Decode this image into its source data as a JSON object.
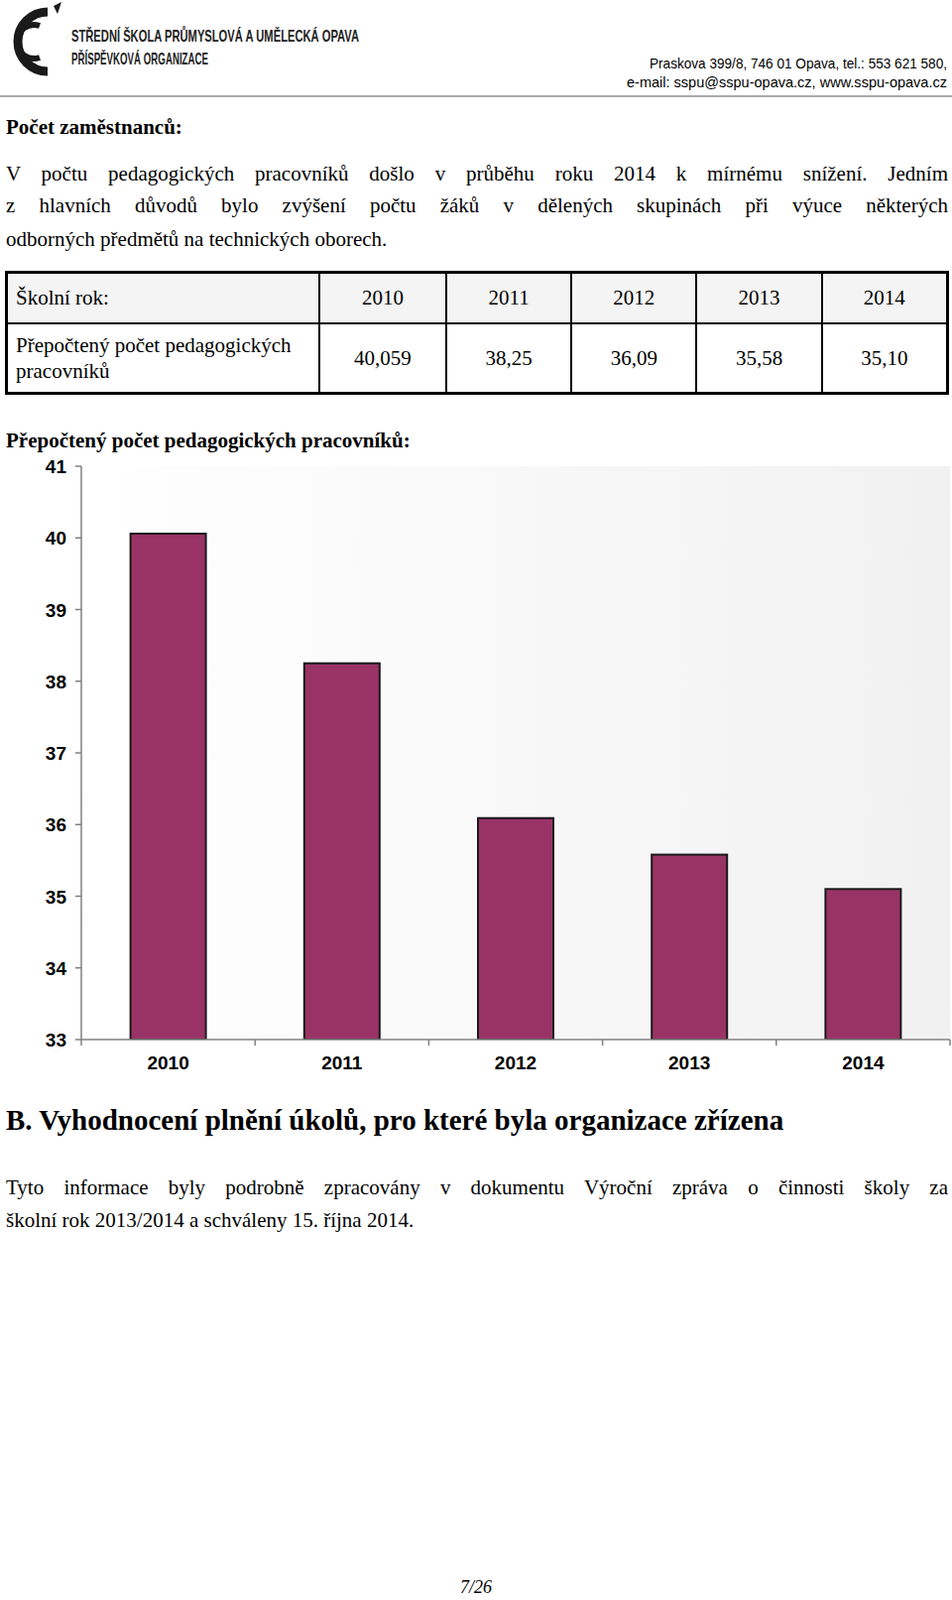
{
  "header": {
    "school_name": [
      "STŘEDNÍ ŠKOLA PRŮMYSLOVÁ A UMĚLECKÁ OPAVA",
      "PŘÍSPĚVKOVÁ ORGANIZACE"
    ],
    "address": "Praskova 399/8, 746 01 Opava, tel.: 553 621 580,",
    "contact": "e-mail: sspu@sspu-opava.cz, www.sspu-opava.cz"
  },
  "section": {
    "heading": "Počet zaměstnanců:",
    "paragraph": [
      "V počtu pedagogických pracovníků došlo v průběhu roku 2014 k mírnému snížení. Jedním",
      "z hlavních důvodů bylo zvýšení počtu žáků v dělených skupinách při výuce některých",
      "odborných předmětů na technických oborech."
    ]
  },
  "table": {
    "header": [
      "Školní rok:",
      "2010",
      "2011",
      "2012",
      "2013",
      "2014"
    ],
    "rows": [
      [
        "Přepočtený počet pedagogických pracovníků",
        "40,059",
        "38,25",
        "36,09",
        "35,58",
        "35,10"
      ]
    ]
  },
  "chart_data": {
    "type": "bar",
    "title": "Přepočtený počet pedagogických pracovníků:",
    "categories": [
      "2010",
      "2011",
      "2012",
      "2013",
      "2014"
    ],
    "values": [
      40.059,
      38.25,
      36.09,
      35.58,
      35.1
    ],
    "color": "#993366",
    "ylim": [
      33,
      41
    ],
    "yticks": [
      33,
      34,
      35,
      36,
      37,
      38,
      39,
      40,
      41
    ],
    "grid": false
  },
  "section_b": {
    "heading": "B. Vyhodnocení plnění úkolů, pro které byla organizace zřízena",
    "paragraph": [
      "Tyto informace byly podrobně zpracovány v dokumentu Výroční zpráva o činnosti školy za",
      "školní rok 2013/2014 a schváleny 15. října 2014."
    ]
  },
  "footer": {
    "page": "7/26"
  }
}
